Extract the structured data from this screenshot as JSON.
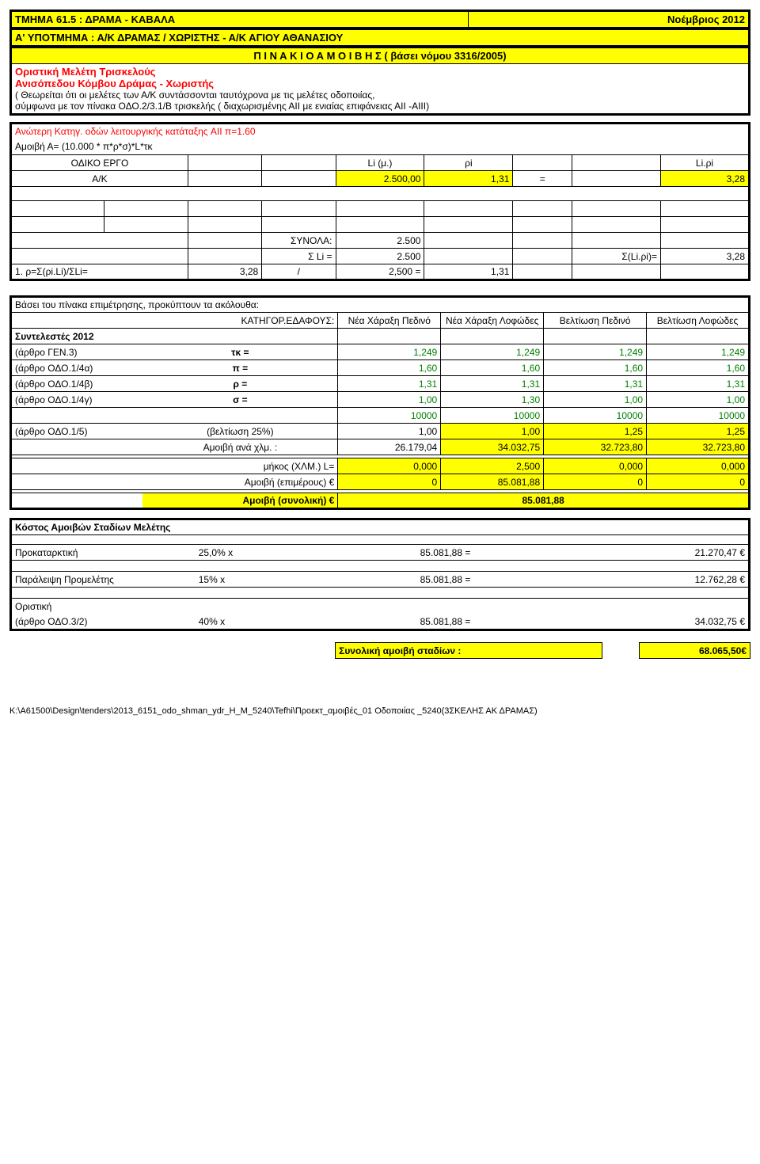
{
  "header": {
    "section_code": "ΤΜΗΜΑ 61.5 : ΔΡΑΜΑ - ΚΑΒΑΛΑ",
    "month": "Νοέμβριος 2012",
    "subsection": "Α' ΥΠΟΤΜΗΜΑ : Α/Κ ΔΡΑΜΑΣ / ΧΩΡΙΣΤΗΣ - Α/Κ ΑΓΙΟΥ ΑΘΑΝΑΣΙΟΥ",
    "pinakio": "Π Ι Ν Α Κ Ι Ο   Α Μ Ο Ι Β Η Σ  ( βάσει νόμου 3316/2005)",
    "line1": "Oριστική Μελέτη Τρισκελούς",
    "line2": "Ανισόπεδου Κόμβου Δράμας - Χωριστής",
    "note1": "( Θεωρείται ότι οι μελέτες των Α/Κ συντάσσονται ταυτόχρονα με τις μελέτες οδοποιίας,",
    "note2": "σύμφωνα με τον πίνακα ΟΔΟ.2/3.1/Β τρισκελής ( διαχωρισμένης ΑΙΙ  με ενιαίας επιφάνειας ΑΙΙ -ΑΙΙΙ)"
  },
  "cat": {
    "title": "Ανώτερη Κατηγ. οδών λειτουργικής κατάταξης  AII   π=1.60",
    "formula": "Αμοιβή Α= (10.000 * π*ρ*σ)*L*τκ",
    "headers": {
      "h1": "ΟΔΙΚΟ ΕΡΓΟ",
      "h2": "Li (μ.)",
      "h3": "ρi",
      "h4": "Li.ρi"
    },
    "row": {
      "label": "Α/Κ",
      "li": "2.500,00",
      "rho": "1,31",
      "eq": "=",
      "lirho": "3,28"
    }
  },
  "totals": {
    "synola_lbl": "ΣΥΝΟΛΑ:",
    "synola_val": "2.500",
    "sli_lbl": "Σ Li =",
    "sli_val": "2.500",
    "slirho_lbl": "Σ(Li.ρi)=",
    "slirho_val": "3,28",
    "rho_lbl": "1. ρ=Σ(ρi.Li)/ΣLi=",
    "rho_v1": "3,28",
    "rho_slash": "/",
    "rho_v2": "2,500 =",
    "rho_res": "1,31"
  },
  "basis": {
    "title": "Βάσει του πίνακα επιμέτρησης, προκύπτουν τα ακόλουθα:",
    "cat_lbl": "ΚΑΤΗΓΟΡ.ΕΔΑΦΟΥΣ:",
    "cols": [
      "Νέα Χάραξη Πεδινό",
      "Νέα Χάραξη Λοφώδες",
      "Βελτίωση Πεδινό",
      "Βελτίωση Λοφώδες"
    ],
    "coef": "Συντελεστές   2012",
    "rows": [
      {
        "a": "(άρθρο ΓΕΝ.3)",
        "s": "τκ =",
        "v": [
          "1,249",
          "1,249",
          "1,249",
          "1,249"
        ],
        "green": true
      },
      {
        "a": "(άρθρο ΟΔΟ.1/4α)",
        "s": "π =",
        "v": [
          "1,60",
          "1,60",
          "1,60",
          "1,60"
        ],
        "green": true
      },
      {
        "a": "(άρθρο ΟΔΟ.1/4β)",
        "s": "ρ =",
        "v": [
          "1,31",
          "1,31",
          "1,31",
          "1,31"
        ],
        "green": true
      },
      {
        "a": "(άρθρο ΟΔΟ.1/4γ)",
        "s": "σ =",
        "v": [
          "1,00",
          "1,30",
          "1,00",
          "1,00"
        ],
        "green": true,
        "row2": [
          "10000",
          "10000",
          "10000",
          "10000"
        ]
      },
      {
        "a": "(άρθρο ΟΔΟ.1/5)",
        "s": "(βελτίωση  25%)",
        "v": [
          "1,00",
          "1,00",
          "1,25",
          "1,25"
        ]
      },
      {
        "a": "",
        "s": "Αμοιβή  ανά χλμ.  :",
        "v": [
          "26.179,04",
          "34.032,75",
          "32.723,80",
          "32.723,80"
        ]
      }
    ],
    "len_lbl": "μήκος (ΧΛΜ.)   L=",
    "len_vals": [
      "0,000",
      "2,500",
      "0,000",
      "0,000"
    ],
    "part_lbl": "Αμοιβή  (επιμέρους) €",
    "part_vals": [
      "0",
      "85.081,88",
      "0",
      "0"
    ],
    "total_lbl": "Αμοιβή  (συνολική) €",
    "total_val": "85.081,88"
  },
  "stages": {
    "title": "Κόστος Αμοιβών Σταδίων Μελέτης",
    "rows": [
      {
        "lbl": "Προκαταρκτική",
        "pct": "25,0% x",
        "base": "85.081,88 =",
        "res": "21.270,47 €"
      },
      {
        "lbl": "Παράλειψη Προμελέτης",
        "pct": "15% x",
        "base": "85.081,88 =",
        "res": "12.762,28 €"
      }
    ],
    "final_lbl1": "Οριστική",
    "final_lbl2": "(άρθρο ΟΔΟ.3/2)",
    "final_pct": "40% x",
    "final_base": "85.081,88 =",
    "final_res": "34.032,75 €",
    "sum_lbl": "Συνολική αμοιβή σταδίων :",
    "sum_val": "68.065,50€"
  },
  "footer": {
    "path": "K:\\A61500\\Design\\tenders\\2013_6151_odo_shman_ydr_H_M_5240\\Tefhi\\Προεκτ_αμοιβές_01 Οδοποιίας _5240(3ΣΚΕΛΗΣ ΑΚ ΔΡΑΜΑΣ)"
  }
}
